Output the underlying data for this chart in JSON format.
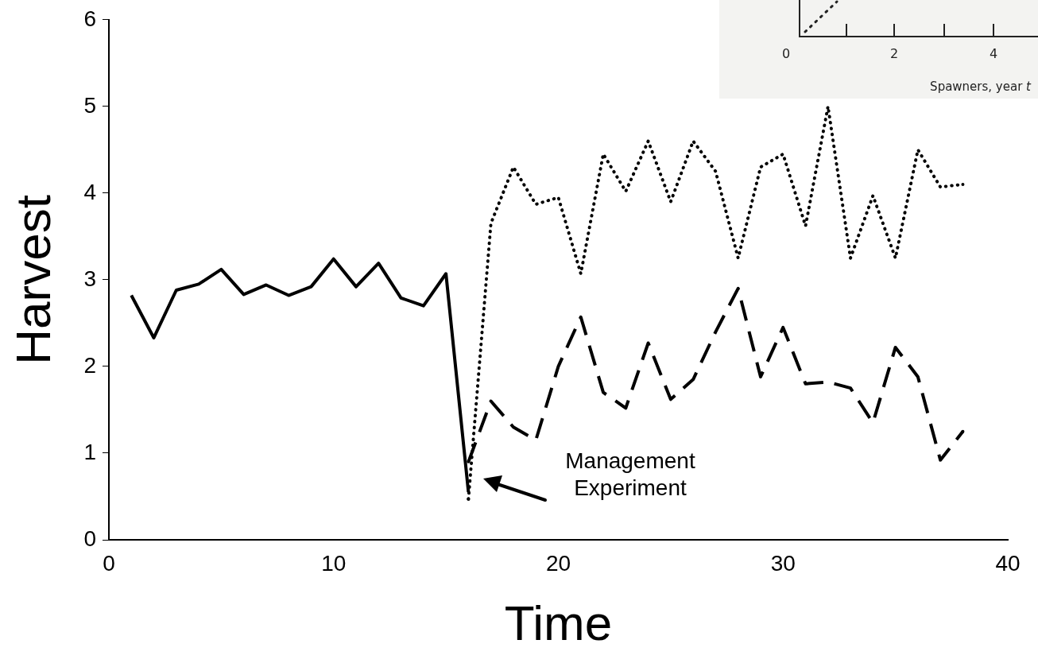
{
  "chart_data": {
    "type": "line",
    "xlabel": "Time",
    "ylabel": "Harvest",
    "xlim": [
      0,
      40
    ],
    "xticks": [
      0,
      10,
      20,
      30,
      40
    ],
    "ylim": [
      0,
      6
    ],
    "yticks": [
      0,
      1,
      2,
      3,
      4,
      5,
      6
    ],
    "grid": false,
    "legend": false,
    "marker": "none",
    "annotations": [
      "Management Experiment",
      "0",
      "2",
      "4",
      "Spawners, year t"
    ],
    "series": [
      {
        "color": "#000000",
        "line_style": "solid",
        "x": [
          1,
          2,
          3,
          4,
          5,
          6,
          7,
          8,
          9,
          10,
          11,
          12,
          13,
          14,
          15,
          16
        ],
        "values": [
          2.82,
          2.33,
          2.88,
          2.95,
          3.12,
          2.83,
          2.94,
          2.82,
          2.92,
          3.24,
          2.92,
          3.19,
          2.79,
          2.7,
          3.07,
          0.55
        ]
      },
      {
        "color": "#000000",
        "line_style": "dotted",
        "x": [
          16,
          17,
          18,
          19,
          20,
          21,
          22,
          23,
          24,
          25,
          26,
          27,
          28,
          29,
          30,
          31,
          32,
          33,
          34,
          35,
          36,
          37,
          38
        ],
        "values": [
          0.47,
          3.65,
          4.3,
          3.87,
          3.95,
          3.07,
          4.45,
          4.02,
          4.6,
          3.9,
          4.6,
          4.25,
          3.25,
          4.3,
          4.45,
          3.62,
          5.0,
          3.25,
          3.97,
          3.25,
          4.5,
          4.07,
          4.1
        ]
      },
      {
        "color": "#000000",
        "line_style": "dashed",
        "x": [
          16,
          17,
          18,
          19,
          20,
          21,
          22,
          23,
          24,
          25,
          26,
          27,
          28,
          29,
          30,
          31,
          32,
          33,
          34,
          35,
          36,
          37,
          38
        ],
        "values": [
          0.9,
          1.6,
          1.3,
          1.15,
          2.0,
          2.57,
          1.7,
          1.52,
          2.27,
          1.62,
          1.85,
          2.4,
          2.9,
          1.88,
          2.45,
          1.8,
          1.82,
          1.75,
          1.35,
          2.22,
          1.88,
          0.92,
          1.25
        ]
      }
    ]
  }
}
